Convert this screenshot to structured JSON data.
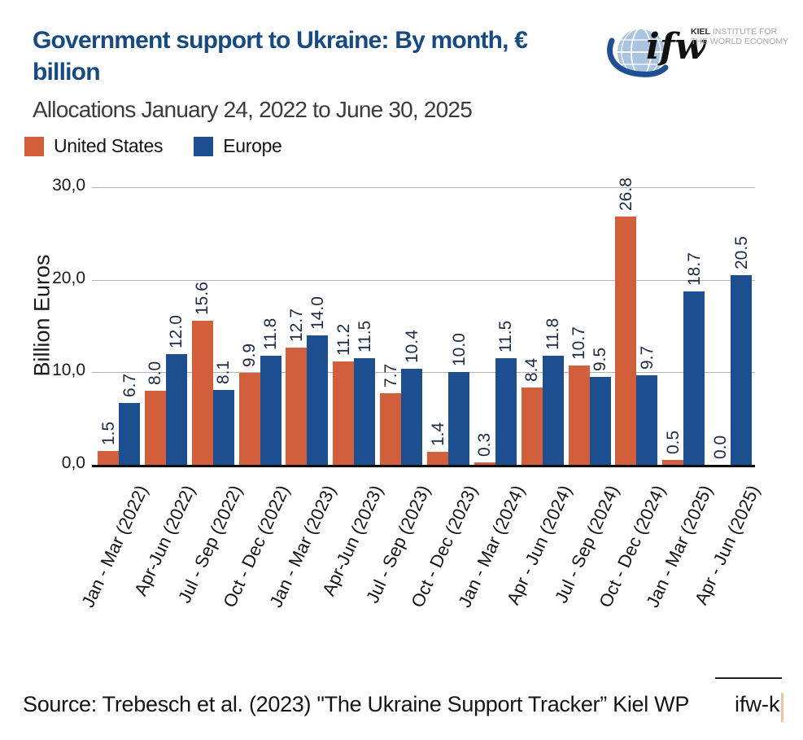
{
  "header": {
    "title": "Government support to Ukraine: By month, € billion",
    "title_lines": [
      "Government support to Ukraine: By month, €",
      "billion"
    ],
    "subtitle": "Allocations January 24, 2022 to June 30, 2025"
  },
  "logo": {
    "script_text": "ifw",
    "org_bold": "KIEL",
    "org_line1_rest": " INSTITUTE FOR",
    "org_line2": "THE WORLD ECONOMY",
    "globe_color": "#aac4e0",
    "swoosh_color": "#1d4f91"
  },
  "legend": [
    {
      "label": "United States",
      "color": "#d15f3b"
    },
    {
      "label": "Europe",
      "color": "#1d4e8f"
    }
  ],
  "chart_data": {
    "type": "bar",
    "title": "Government support to Ukraine: By month, € billion",
    "subtitle": "Allocations January 24, 2022 to June 30, 2025",
    "xlabel": "",
    "ylabel": "Billion Euros",
    "ylim": [
      0,
      30
    ],
    "grid": true,
    "legend_position": "top-left",
    "yticks": [
      {
        "value": 0,
        "label": "0,0"
      },
      {
        "value": 10,
        "label": "10,0"
      },
      {
        "value": 20,
        "label": "20,0"
      },
      {
        "value": 30,
        "label": "30,0"
      }
    ],
    "categories": [
      "Jan - Mar (2022)",
      "Apr-Jun (2022)",
      "Jul - Sep (2022)",
      "Oct - Dec (2022)",
      "Jan - Mar (2023)",
      "Apr-Jun (2023)",
      "Jul - Sep (2023)",
      "Oct - Dec (2023)",
      "Jan - Mar (2024)",
      "Apr - Jun (2024)",
      "Jul - Sep (2024)",
      "Oct - Dec (2024)",
      "Jan - Mar (2025)",
      "Apr - Jun (2025)"
    ],
    "series": [
      {
        "name": "United States",
        "color": "#d15f3b",
        "values": [
          1.5,
          8.0,
          15.6,
          9.9,
          12.7,
          11.2,
          7.7,
          1.4,
          0.3,
          8.4,
          10.7,
          26.8,
          0.5,
          0.0
        ]
      },
      {
        "name": "Europe",
        "color": "#1d4e8f",
        "values": [
          6.7,
          12.0,
          8.1,
          11.8,
          14.0,
          11.5,
          10.4,
          10.0,
          11.5,
          11.8,
          9.5,
          9.7,
          18.7,
          20.5
        ]
      }
    ]
  },
  "footer": {
    "source": "Source: Trebesch et al. (2023) \"The Ukraine Support Tracker” Kiel WP",
    "link_text": "ifw-k"
  }
}
